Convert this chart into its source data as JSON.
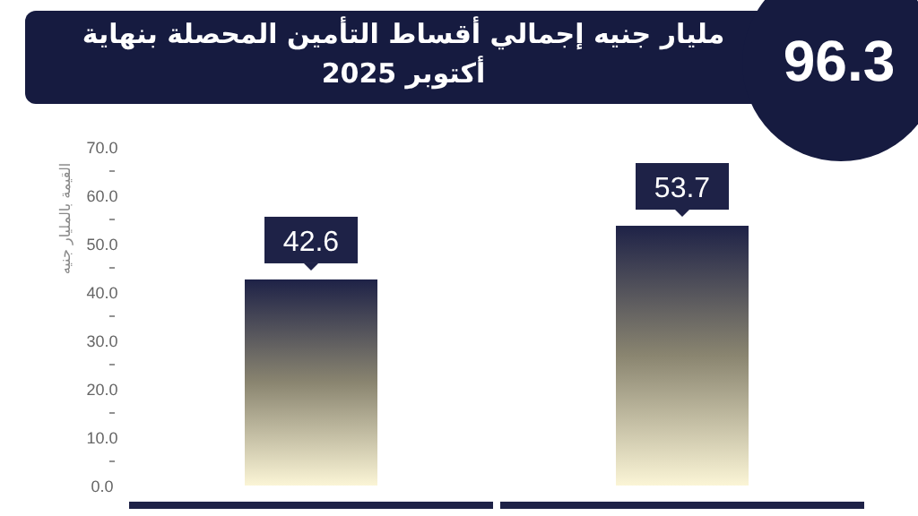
{
  "chart_data": {
    "type": "bar",
    "title": "مليار جنيه إجمالي أقساط التأمين المحصلة بنهاية أكتوبر 2025",
    "annotations": [
      "96.3"
    ],
    "ylabel": "القيمة بالمليار جنيه",
    "categories": [
      null,
      null
    ],
    "values": [
      42.6,
      53.7
    ],
    "color": "#1e2247",
    "data_labels": true,
    "ylim": [
      0,
      70
    ],
    "yticks": [
      {
        "value": 0,
        "label": "0.0"
      },
      {
        "value": 5,
        "label": null
      },
      {
        "value": 10,
        "label": "10.0"
      },
      {
        "value": 15,
        "label": null
      },
      {
        "value": 20,
        "label": "20.0"
      },
      {
        "value": 25,
        "label": null
      },
      {
        "value": 30,
        "label": "30.0"
      },
      {
        "value": 35,
        "label": null
      },
      {
        "value": 40,
        "label": "40.0"
      },
      {
        "value": 45,
        "label": null
      },
      {
        "value": 50,
        "label": "50.0"
      },
      {
        "value": 55,
        "label": null
      },
      {
        "value": 60,
        "label": "60.0"
      },
      {
        "value": 65,
        "label": null
      },
      {
        "value": 70,
        "label": "70.0"
      }
    ]
  }
}
